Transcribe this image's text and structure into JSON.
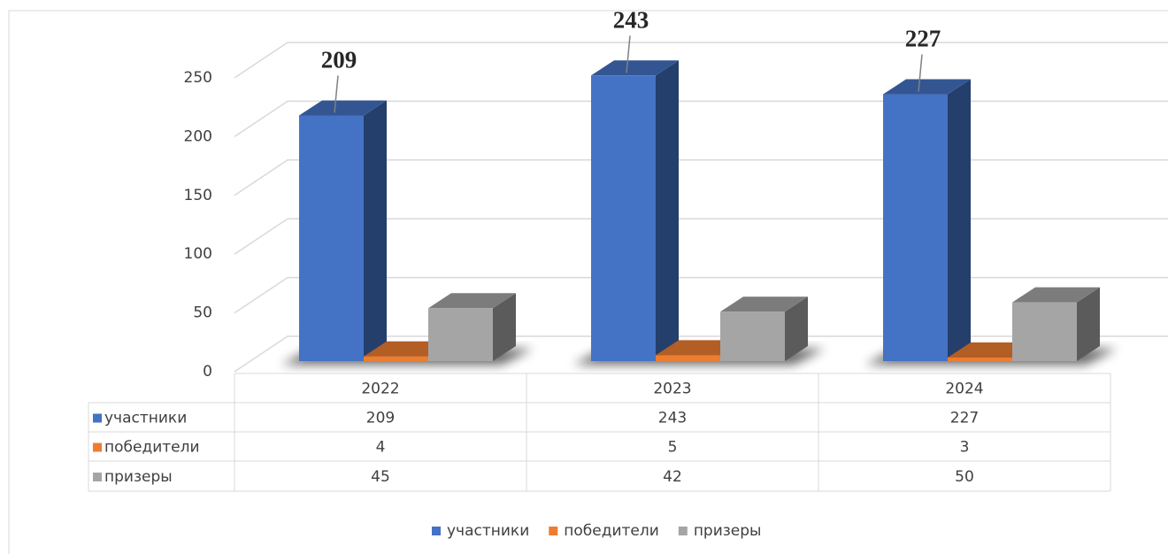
{
  "chart_data": {
    "type": "bar3d",
    "categories": [
      "2022",
      "2023",
      "2024"
    ],
    "series": [
      {
        "name": "участники",
        "color": "#4472c4",
        "values": [
          209,
          243,
          227
        ]
      },
      {
        "name": "победители",
        "color": "#ed7d31",
        "values": [
          4,
          5,
          3
        ]
      },
      {
        "name": "призеры",
        "color": "#a5a5a5",
        "values": [
          45,
          42,
          50
        ]
      }
    ],
    "data_labels_series": 0,
    "ylim": [
      0,
      250
    ],
    "yticks": [
      0,
      50,
      100,
      150,
      200,
      250
    ],
    "grid": true,
    "data_table": true,
    "legend": "bottom"
  }
}
